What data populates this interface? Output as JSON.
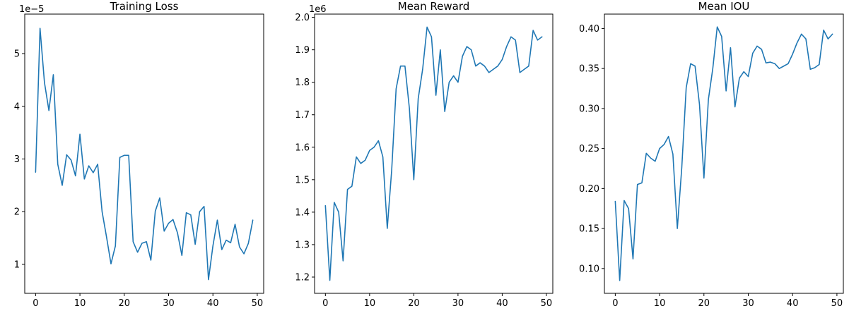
{
  "line_color": "#1f77b4",
  "chart_data": [
    {
      "type": "line",
      "title": "Training Loss",
      "xlabel": "",
      "ylabel": "",
      "offset_text": "1e−5",
      "xlim": [
        -2.45,
        51.45
      ],
      "ylim": [
        0.45,
        5.75
      ],
      "xticks": [
        0,
        10,
        20,
        30,
        40,
        50
      ],
      "xtick_labels": [
        "0",
        "10",
        "20",
        "30",
        "40",
        "50"
      ],
      "yticks": [
        1,
        2,
        3,
        4,
        5
      ],
      "ytick_labels": [
        "1",
        "2",
        "3",
        "4",
        "5"
      ],
      "grid": false,
      "series": [
        {
          "x": [
            0,
            1,
            2,
            3,
            4,
            5,
            6,
            7,
            8,
            9,
            10,
            11,
            12,
            13,
            14,
            15,
            16,
            17,
            18,
            19,
            20,
            21,
            22,
            23,
            24,
            25,
            26,
            27,
            28,
            29,
            30,
            31,
            32,
            33,
            34,
            35,
            36,
            37,
            38,
            39,
            40,
            41,
            42,
            43,
            44,
            45,
            46,
            47,
            48,
            49
          ],
          "values": [
            2.75,
            5.48,
            4.45,
            3.92,
            4.6,
            2.9,
            2.5,
            3.08,
            2.98,
            2.68,
            3.47,
            2.62,
            2.87,
            2.74,
            2.9,
            2.0,
            1.52,
            1.01,
            1.35,
            3.03,
            3.07,
            3.07,
            1.43,
            1.23,
            1.4,
            1.43,
            1.08,
            2.01,
            2.26,
            1.63,
            1.78,
            1.85,
            1.6,
            1.17,
            1.98,
            1.94,
            1.38,
            2.0,
            2.1,
            0.71,
            1.35,
            1.84,
            1.28,
            1.46,
            1.41,
            1.76,
            1.33,
            1.2,
            1.4,
            1.84
          ]
        }
      ]
    },
    {
      "type": "line",
      "title": "Mean Reward",
      "xlabel": "",
      "ylabel": "",
      "offset_text": "1e6",
      "xlim": [
        -2.45,
        51.45
      ],
      "ylim": [
        1.15,
        2.01
      ],
      "xticks": [
        0,
        10,
        20,
        30,
        40,
        50
      ],
      "xtick_labels": [
        "0",
        "10",
        "20",
        "30",
        "40",
        "50"
      ],
      "yticks": [
        1.2,
        1.3,
        1.4,
        1.5,
        1.6,
        1.7,
        1.8,
        1.9,
        2.0
      ],
      "ytick_labels": [
        "1.2",
        "1.3",
        "1.4",
        "1.5",
        "1.6",
        "1.7",
        "1.8",
        "1.9",
        "2.0"
      ],
      "grid": false,
      "series": [
        {
          "x": [
            0,
            1,
            2,
            3,
            4,
            5,
            6,
            7,
            8,
            9,
            10,
            11,
            12,
            13,
            14,
            15,
            16,
            17,
            18,
            19,
            20,
            21,
            22,
            23,
            24,
            25,
            26,
            27,
            28,
            29,
            30,
            31,
            32,
            33,
            34,
            35,
            36,
            37,
            38,
            39,
            40,
            41,
            42,
            43,
            44,
            45,
            46,
            47,
            48,
            49
          ],
          "values": [
            1.42,
            1.19,
            1.43,
            1.4,
            1.25,
            1.47,
            1.48,
            1.57,
            1.55,
            1.56,
            1.59,
            1.6,
            1.62,
            1.57,
            1.35,
            1.53,
            1.78,
            1.85,
            1.85,
            1.72,
            1.5,
            1.75,
            1.84,
            1.97,
            1.94,
            1.76,
            1.9,
            1.71,
            1.8,
            1.82,
            1.8,
            1.88,
            1.91,
            1.9,
            1.85,
            1.86,
            1.85,
            1.83,
            1.84,
            1.85,
            1.87,
            1.91,
            1.94,
            1.93,
            1.83,
            1.84,
            1.85,
            1.96,
            1.93,
            1.94
          ]
        }
      ]
    },
    {
      "type": "line",
      "title": "Mean IOU",
      "xlabel": "",
      "ylabel": "",
      "offset_text": "",
      "xlim": [
        -2.45,
        51.45
      ],
      "ylim": [
        0.069,
        0.418
      ],
      "xticks": [
        0,
        10,
        20,
        30,
        40,
        50
      ],
      "xtick_labels": [
        "0",
        "10",
        "20",
        "30",
        "40",
        "50"
      ],
      "yticks": [
        0.1,
        0.15,
        0.2,
        0.25,
        0.3,
        0.35,
        0.4
      ],
      "ytick_labels": [
        "0.10",
        "0.15",
        "0.20",
        "0.25",
        "0.30",
        "0.35",
        "0.40"
      ],
      "grid": false,
      "series": [
        {
          "x": [
            0,
            1,
            2,
            3,
            4,
            5,
            6,
            7,
            8,
            9,
            10,
            11,
            12,
            13,
            14,
            15,
            16,
            17,
            18,
            19,
            20,
            21,
            22,
            23,
            24,
            25,
            26,
            27,
            28,
            29,
            30,
            31,
            32,
            33,
            34,
            35,
            36,
            37,
            38,
            39,
            40,
            41,
            42,
            43,
            44,
            45,
            46,
            47,
            48,
            49
          ],
          "values": [
            0.184,
            0.085,
            0.185,
            0.175,
            0.112,
            0.205,
            0.207,
            0.244,
            0.238,
            0.234,
            0.25,
            0.255,
            0.265,
            0.243,
            0.15,
            0.226,
            0.326,
            0.356,
            0.353,
            0.305,
            0.213,
            0.311,
            0.35,
            0.402,
            0.39,
            0.322,
            0.376,
            0.302,
            0.338,
            0.346,
            0.34,
            0.369,
            0.378,
            0.374,
            0.357,
            0.358,
            0.356,
            0.35,
            0.353,
            0.356,
            0.368,
            0.382,
            0.393,
            0.387,
            0.349,
            0.351,
            0.355,
            0.398,
            0.387,
            0.393
          ]
        }
      ]
    }
  ]
}
